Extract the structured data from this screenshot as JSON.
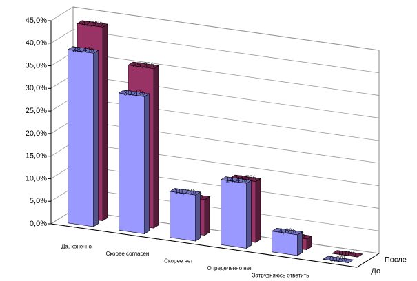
{
  "chart_data": {
    "type": "bar3d",
    "categories": [
      "Да, конечно",
      "Скорее согласен",
      "Скорее нет",
      "Определенно нет",
      "Затрудняюсь ответить",
      null
    ],
    "series": [
      {
        "name": "До",
        "color": "#9999ff",
        "values": [
          38.4,
          30.4,
          10.2,
          14.4,
          4.6,
          0.0
        ],
        "value_labels": [
          "38,4%",
          "30,4%",
          "10,2%",
          "14,4%",
          "4,6%",
          "0,0%"
        ]
      },
      {
        "name": "После",
        "color": "#993366",
        "values": [
          42.9,
          35.3,
          7.9,
          13.5,
          2.4,
          0.0
        ],
        "value_labels": [
          "42,9%",
          "35,3%",
          "7,9%",
          "13,5%",
          "2,4%",
          "0,0%"
        ]
      }
    ],
    "ylim": [
      0,
      45
    ],
    "yticks": [
      {
        "value": 0,
        "label": "0,0%"
      },
      {
        "value": 5,
        "label": "5,0%"
      },
      {
        "value": 10,
        "label": "10,0%"
      },
      {
        "value": 15,
        "label": "15,0%"
      },
      {
        "value": 20,
        "label": "20,0%"
      },
      {
        "value": 25,
        "label": "25,0%"
      },
      {
        "value": 30,
        "label": "30,0%"
      },
      {
        "value": 35,
        "label": "35,0%"
      },
      {
        "value": 40,
        "label": "40,0%"
      },
      {
        "value": 45,
        "label": "45,0%"
      }
    ],
    "grid": true
  }
}
